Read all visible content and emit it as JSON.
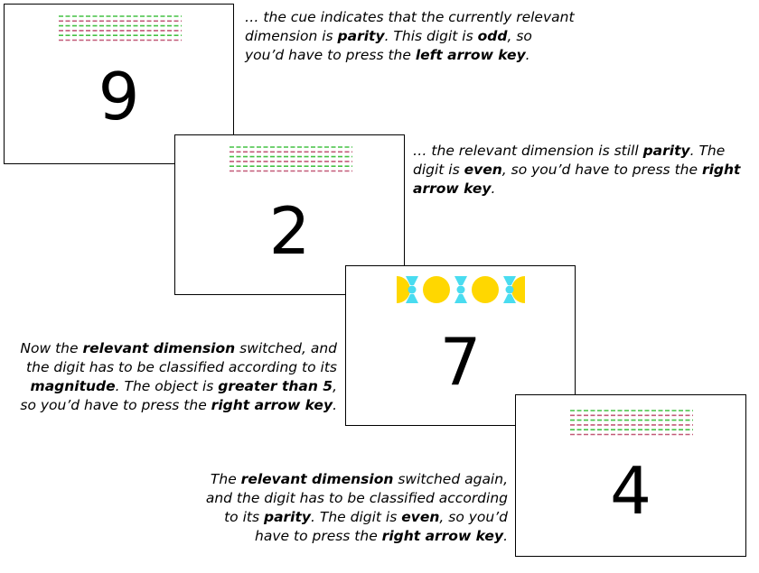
{
  "colors": {
    "green": "#44c244",
    "red": "#c25a78",
    "yellow": "#ffd700",
    "cyan": "#49dcf0"
  },
  "cards": [
    {
      "digit": "9",
      "cue": "parity-cue"
    },
    {
      "digit": "2",
      "cue": "parity-cue"
    },
    {
      "digit": "7",
      "cue": "magnitude-cue"
    },
    {
      "digit": "4",
      "cue": "parity-cue"
    }
  ],
  "captions": [
    {
      "segments": [
        {
          "text": "… the cue indicates that the currently relevant dimension is "
        },
        {
          "text": "parity",
          "bold": true
        },
        {
          "text": ". This digit is "
        },
        {
          "text": "odd",
          "bold": true
        },
        {
          "text": ", so you’d have to press the "
        },
        {
          "text": "left arrow key",
          "bold": true
        },
        {
          "text": "."
        }
      ]
    },
    {
      "segments": [
        {
          "text": "… the relevant dimension is still "
        },
        {
          "text": "parity",
          "bold": true
        },
        {
          "text": ". The digit is "
        },
        {
          "text": "even",
          "bold": true
        },
        {
          "text": ", so you’d have to press the "
        },
        {
          "text": "right arrow key",
          "bold": true
        },
        {
          "text": "."
        }
      ]
    },
    {
      "segments": [
        {
          "text": "Now the "
        },
        {
          "text": "relevant dimension",
          "bold": true
        },
        {
          "text": " switched, and the digit has to be classified according to its "
        },
        {
          "text": "magnitude",
          "bold": true
        },
        {
          "text": ". The object is "
        },
        {
          "text": "greater than 5",
          "bold": true
        },
        {
          "text": ", so you’d have to press the "
        },
        {
          "text": "right arrow key",
          "bold": true
        },
        {
          "text": "."
        }
      ]
    },
    {
      "segments": [
        {
          "text": "The "
        },
        {
          "text": "relevant dimension",
          "bold": true
        },
        {
          "text": " switched again, and the digit has to be classified according to its "
        },
        {
          "text": "parity",
          "bold": true
        },
        {
          "text": ". The digit is "
        },
        {
          "text": "even",
          "bold": true
        },
        {
          "text": ", so you’d have to press the "
        },
        {
          "text": "right arrow key",
          "bold": true
        },
        {
          "text": "."
        }
      ]
    }
  ]
}
